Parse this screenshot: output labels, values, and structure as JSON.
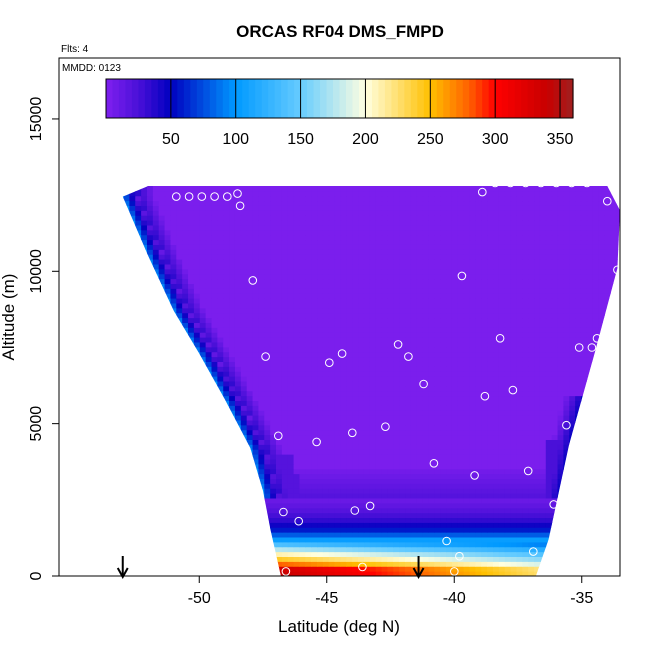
{
  "chart_data": {
    "type": "heatmap",
    "title": "ORCAS RF04 DMS_FMPD",
    "subtitle_flts": "Flts: 4",
    "subtitle_mmdd": "MMDD: 0123",
    "xlabel": "Latitude (deg N)",
    "ylabel": "Altitude (m)",
    "xlim": [
      -55.5,
      -33.5
    ],
    "ylim": [
      0,
      17000
    ],
    "xticks": [
      -50,
      -45,
      -40,
      -35
    ],
    "xtick_labels": [
      "-50",
      "-45",
      "-40",
      "-35"
    ],
    "yticks": [
      0,
      5000,
      10000,
      15000
    ],
    "ytick_labels": [
      "0",
      "5000",
      "10000",
      "15000"
    ],
    "colorbar": {
      "range": [
        0,
        360
      ],
      "ticks": [
        50,
        100,
        150,
        200,
        250,
        300,
        350
      ],
      "tick_labels": [
        "50",
        "100",
        "150",
        "200",
        "250",
        "300",
        "350"
      ],
      "stops": [
        {
          "v": 0,
          "c": "#7f1fef"
        },
        {
          "v": 25,
          "c": "#4a10d8"
        },
        {
          "v": 50,
          "c": "#0000c0"
        },
        {
          "v": 100,
          "c": "#0099ff"
        },
        {
          "v": 150,
          "c": "#66ccff"
        },
        {
          "v": 200,
          "c": "#ffffe0"
        },
        {
          "v": 250,
          "c": "#ffc000"
        },
        {
          "v": 280,
          "c": "#ff6000"
        },
        {
          "v": 300,
          "c": "#ff0000"
        },
        {
          "v": 340,
          "c": "#c80000"
        },
        {
          "v": 360,
          "c": "#a02020"
        }
      ]
    },
    "grid": false,
    "field_envelope": {
      "lat": [
        -53.0,
        -52.0,
        -51.0,
        -50.0,
        -49.0,
        -48.0,
        -47.5,
        -47.2,
        -46.8,
        -44.0,
        -41.0,
        -38.0,
        -36.8,
        -36.3,
        -35.5,
        -34.5,
        -33.6,
        -33.5,
        -34.0,
        -36.0,
        -38.0,
        -40.0,
        -42.0,
        -44.0,
        -46.0,
        -48.0,
        -50.0,
        -52.0,
        -53.0
      ],
      "alt": [
        12450,
        10500,
        8700,
        7300,
        5800,
        4200,
        2800,
        1500,
        0,
        0,
        0,
        0,
        0,
        1200,
        4300,
        7300,
        10100,
        12000,
        12800,
        12800,
        12800,
        12800,
        12800,
        12800,
        12800,
        12800,
        12800,
        12800,
        12450
      ]
    },
    "flight_points": [
      {
        "lat": -50.9,
        "alt": 12450
      },
      {
        "lat": -50.4,
        "alt": 12450
      },
      {
        "lat": -49.9,
        "alt": 12450
      },
      {
        "lat": -49.4,
        "alt": 12450
      },
      {
        "lat": -48.9,
        "alt": 12450
      },
      {
        "lat": -48.5,
        "alt": 12550
      },
      {
        "lat": -48.4,
        "alt": 12150
      },
      {
        "lat": -47.9,
        "alt": 9700
      },
      {
        "lat": -47.4,
        "alt": 7200
      },
      {
        "lat": -46.9,
        "alt": 4600
      },
      {
        "lat": -46.7,
        "alt": 2100
      },
      {
        "lat": -46.1,
        "alt": 1800
      },
      {
        "lat": -46.6,
        "alt": 150
      },
      {
        "lat": -45.4,
        "alt": 4400
      },
      {
        "lat": -44.9,
        "alt": 7000
      },
      {
        "lat": -44.4,
        "alt": 7300
      },
      {
        "lat": -44.0,
        "alt": 4700
      },
      {
        "lat": -43.9,
        "alt": 2150
      },
      {
        "lat": -43.6,
        "alt": 300
      },
      {
        "lat": -43.3,
        "alt": 2300
      },
      {
        "lat": -42.7,
        "alt": 4900
      },
      {
        "lat": -42.2,
        "alt": 7600
      },
      {
        "lat": -41.8,
        "alt": 7200
      },
      {
        "lat": -41.2,
        "alt": 6300
      },
      {
        "lat": -40.8,
        "alt": 3700
      },
      {
        "lat": -40.3,
        "alt": 1150
      },
      {
        "lat": -40.0,
        "alt": 150
      },
      {
        "lat": -39.7,
        "alt": 9850
      },
      {
        "lat": -39.2,
        "alt": 3300
      },
      {
        "lat": -38.9,
        "alt": 12600
      },
      {
        "lat": -38.8,
        "alt": 5900
      },
      {
        "lat": -38.4,
        "alt": 12900
      },
      {
        "lat": -38.2,
        "alt": 7800
      },
      {
        "lat": -37.8,
        "alt": 12900
      },
      {
        "lat": -37.7,
        "alt": 6100
      },
      {
        "lat": -37.2,
        "alt": 12900
      },
      {
        "lat": -37.1,
        "alt": 3450
      },
      {
        "lat": -36.6,
        "alt": 12900
      },
      {
        "lat": -36.0,
        "alt": 12900
      },
      {
        "lat": -36.1,
        "alt": 2350
      },
      {
        "lat": -35.6,
        "alt": 4950
      },
      {
        "lat": -35.4,
        "alt": 12900
      },
      {
        "lat": -35.1,
        "alt": 7500
      },
      {
        "lat": -34.8,
        "alt": 12900
      },
      {
        "lat": -34.4,
        "alt": 7800
      },
      {
        "lat": -34.6,
        "alt": 7500
      },
      {
        "lat": -34.0,
        "alt": 12300
      },
      {
        "lat": -33.8,
        "alt": 7800
      },
      {
        "lat": -33.6,
        "alt": 10050
      },
      {
        "lat": -33.6,
        "alt": 8150
      },
      {
        "lat": -36.9,
        "alt": 800
      },
      {
        "lat": -39.8,
        "alt": 650
      }
    ],
    "arrows_lat": [
      -53.0,
      -41.4
    ]
  }
}
